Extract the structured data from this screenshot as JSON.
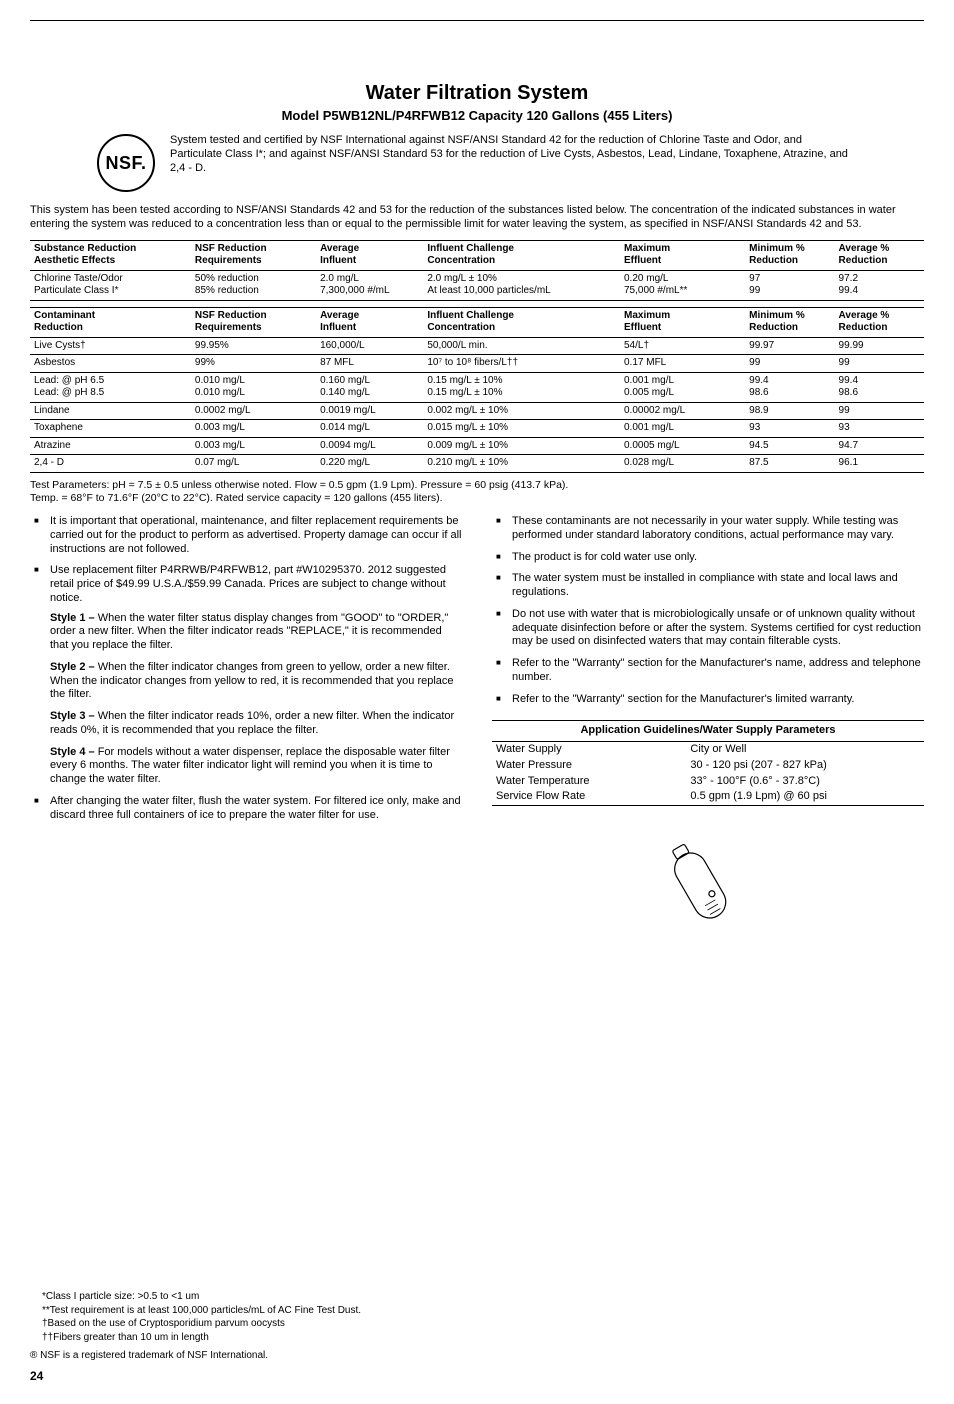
{
  "header": {
    "title": "Water Filtration System",
    "subtitle": "Model P5WB12NL/P4RFWB12 Capacity 120 Gallons (455 Liters)",
    "nsf_label": "NSF.",
    "cert_text": "System tested and certified by NSF International against NSF/ANSI Standard 42 for the reduction of Chlorine Taste and Odor, and Particulate Class I*; and against NSF/ANSI Standard 53 for the reduction of Live Cysts, Asbestos, Lead, Lindane, Toxaphene, Atrazine, and 2,4 - D.",
    "intro": "This system has been tested according to NSF/ANSI Standards 42 and 53 for the reduction of the substances listed below. The concentration of the indicated substances in water entering the system was reduced to a concentration less than or equal to the permissible limit for water leaving the system, as specified in NSF/ANSI Standards 42 and 53."
  },
  "table1": {
    "headers": [
      "Substance Reduction Aesthetic Effects",
      "NSF Reduction Requirements",
      "Average Influent",
      "Influent Challenge Concentration",
      "Maximum Effluent",
      "Minimum % Reduction",
      "Average % Reduction"
    ],
    "rows": [
      [
        "Chlorine Taste/Odor\nParticulate Class I*",
        "50% reduction\n85% reduction",
        "2.0 mg/L\n7,300,000 #/mL",
        "2.0 mg/L ± 10%\nAt least 10,000 particles/mL",
        "0.20 mg/L\n75,000 #/mL**",
        "97\n99",
        "97.2\n99.4"
      ]
    ]
  },
  "table2": {
    "headers": [
      "Contaminant Reduction",
      "NSF Reduction Requirements",
      "Average Influent",
      "Influent Challenge Concentration",
      "Maximum Effluent",
      "Minimum % Reduction",
      "Average % Reduction"
    ],
    "rows": [
      [
        "Live Cysts†",
        "99.95%",
        "160,000/L",
        "50,000/L min.",
        "54/L†",
        "99.97",
        "99.99"
      ],
      [
        "Asbestos",
        "99%",
        "87 MFL",
        "10⁷ to 10⁸ fibers/L††",
        "0.17 MFL",
        "99",
        "99"
      ],
      [
        "Lead: @ pH 6.5\nLead: @ pH 8.5",
        "0.010 mg/L\n0.010 mg/L",
        "0.160 mg/L\n0.140 mg/L",
        "0.15 mg/L ± 10%\n0.15 mg/L ± 10%",
        "0.001 mg/L\n0.005 mg/L",
        "99.4\n98.6",
        "99.4\n98.6"
      ],
      [
        "Lindane",
        "0.0002 mg/L",
        "0.0019 mg/L",
        "0.002 mg/L ± 10%",
        "0.00002 mg/L",
        "98.9",
        "99"
      ],
      [
        "Toxaphene",
        "0.003 mg/L",
        "0.014 mg/L",
        "0.015 mg/L ± 10%",
        "0.001 mg/L",
        "93",
        "93"
      ],
      [
        "Atrazine",
        "0.003 mg/L",
        "0.0094 mg/L",
        "0.009 mg/L ± 10%",
        "0.0005 mg/L",
        "94.5",
        "94.7"
      ],
      [
        "2,4 - D",
        "0.07 mg/L",
        "0.220 mg/L",
        "0.210 mg/L ± 10%",
        "0.028 mg/L",
        "87.5",
        "96.1"
      ]
    ]
  },
  "test_params": "Test Parameters: pH = 7.5 ± 0.5 unless otherwise noted. Flow = 0.5 gpm (1.9 Lpm). Pressure = 60 psig (413.7 kPa).\nTemp. = 68°F to 71.6°F (20°C to 22°C). Rated service capacity = 120 gallons (455 liters).",
  "left_bullets": {
    "b1": "It is important that operational, maintenance, and filter replacement requirements be carried out for the product to perform as advertised. Property damage can occur if all instructions are not followed.",
    "b2": "Use replacement filter P4RRWB/P4RFWB12, part #W10295370. 2012 suggested retail price of $49.99 U.S.A./$59.99 Canada. Prices are subject to change without notice.",
    "styles": {
      "s1l": "Style 1 –",
      "s1": " When the water filter status display changes from \"GOOD\" to \"ORDER,\" order a new filter. When the filter indicator reads \"REPLACE,\" it is recommended that you replace the filter.",
      "s2l": "Style 2 –",
      "s2": " When the filter indicator changes from green to yellow, order a new filter. When the indicator changes from yellow to red, it is recommended that you replace the filter.",
      "s3l": "Style 3 –",
      "s3": " When the filter indicator reads 10%, order a new filter. When the indicator reads 0%, it is recommended that you replace the filter.",
      "s4l": "Style 4 –",
      "s4": " For models without a water dispenser, replace the disposable water filter every 6 months. The water filter indicator light will remind you when it is time to change the water filter."
    },
    "b3": "After changing the water filter, flush the water system. For filtered ice only, make and discard three full containers of ice to prepare the water filter for use."
  },
  "right_bullets": {
    "r1": "These contaminants are not necessarily in your water supply. While testing was performed under standard laboratory conditions, actual performance may vary.",
    "r2": "The product is for cold water use only.",
    "r3": "The water system must be installed in compliance with state and local laws and regulations.",
    "r4": "Do not use with water that is microbiologically unsafe or of unknown quality without adequate disinfection before or after the system. Systems certified for cyst reduction may be used on disinfected waters that may contain filterable cysts.",
    "r5": "Refer to the \"Warranty\" section for the Manufacturer's name, address and telephone number.",
    "r6": "Refer to the \"Warranty\" section for the Manufacturer's limited warranty."
  },
  "app_table": {
    "title": "Application Guidelines/Water Supply Parameters",
    "rows": [
      [
        "Water Supply",
        "City or Well"
      ],
      [
        "Water Pressure",
        "30 - 120 psi (207 - 827 kPa)"
      ],
      [
        "Water Temperature",
        "33° - 100°F (0.6° - 37.8°C)"
      ],
      [
        "Service Flow Rate",
        "0.5 gpm (1.9 Lpm) @ 60 psi"
      ]
    ]
  },
  "footnotes": {
    "f1": "*Class I particle size: >0.5 to <1 um",
    "f2": "**Test requirement is at least 100,000 particles/mL of AC Fine Test Dust.",
    "f3": "†Based on the use of Cryptosporidium parvum oocysts",
    "f4": "††Fibers greater than 10 um in length",
    "f5": "® NSF is a registered trademark of NSF International."
  },
  "page_number": "24",
  "colors": {
    "text": "#000000",
    "rule": "#000000",
    "bg": "#ffffff"
  },
  "col_widths": [
    "18%",
    "14%",
    "12%",
    "22%",
    "14%",
    "10%",
    "10%"
  ]
}
